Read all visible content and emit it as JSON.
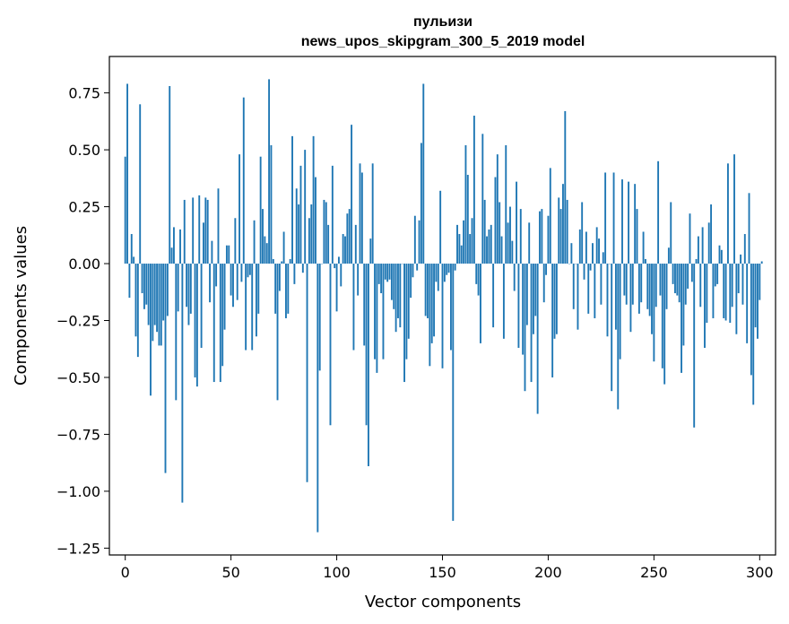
{
  "chart_data": {
    "type": "bar",
    "title_line1": "пульизи",
    "title_line2": "news_upos_skipgram_300_5_2019 model",
    "xlabel": "Vector components",
    "ylabel": "Components values",
    "xlim": [
      -7.5,
      307.5
    ],
    "ylim": [
      -1.28,
      0.91
    ],
    "xticks": [
      0,
      50,
      100,
      150,
      200,
      250,
      300
    ],
    "xtick_labels": [
      "0",
      "50",
      "100",
      "150",
      "200",
      "250",
      "300"
    ],
    "yticks": [
      -1.25,
      -1.0,
      -0.75,
      -0.5,
      -0.25,
      0.0,
      0.25,
      0.5,
      0.75
    ],
    "ytick_labels": [
      "−1.25",
      "−1.00",
      "−0.75",
      "−0.50",
      "−0.25",
      "0.00",
      "0.25",
      "0.50",
      "0.75"
    ],
    "bar_color": "#1f77b4",
    "grid": false,
    "x": "0..299",
    "values": [
      0.47,
      0.79,
      -0.15,
      0.13,
      0.03,
      -0.32,
      -0.41,
      0.7,
      -0.13,
      -0.2,
      -0.18,
      -0.27,
      -0.58,
      -0.34,
      -0.27,
      -0.3,
      -0.36,
      -0.36,
      -0.25,
      -0.92,
      -0.23,
      0.78,
      0.07,
      0.16,
      -0.6,
      -0.21,
      0.15,
      -1.05,
      0.28,
      -0.19,
      -0.27,
      -0.22,
      0.29,
      -0.5,
      -0.54,
      0.3,
      -0.37,
      0.18,
      0.29,
      0.28,
      -0.17,
      0.1,
      -0.52,
      -0.1,
      0.33,
      -0.52,
      -0.45,
      -0.29,
      0.08,
      0.08,
      -0.14,
      -0.19,
      0.2,
      -0.16,
      0.48,
      -0.08,
      0.73,
      -0.38,
      -0.06,
      -0.05,
      -0.38,
      0.19,
      -0.32,
      -0.22,
      0.47,
      0.24,
      0.12,
      0.09,
      0.81,
      0.52,
      0.02,
      -0.22,
      -0.6,
      -0.12,
      0.01,
      0.14,
      -0.24,
      -0.22,
      0.02,
      0.56,
      -0.09,
      0.33,
      0.26,
      0.43,
      -0.04,
      0.5,
      -0.96,
      0.2,
      0.26,
      0.56,
      0.38,
      -1.18,
      -0.47,
      0.0,
      0.28,
      0.27,
      0.17,
      -0.71,
      0.43,
      -0.02,
      -0.21,
      0.03,
      -0.1,
      0.13,
      0.12,
      0.22,
      0.24,
      0.61,
      -0.38,
      0.17,
      -0.14,
      0.44,
      0.4,
      -0.36,
      -0.71,
      -0.89,
      0.11,
      0.44,
      -0.42,
      -0.48,
      -0.09,
      -0.13,
      -0.42,
      -0.07,
      -0.08,
      -0.07,
      -0.16,
      -0.2,
      -0.3,
      -0.24,
      -0.28,
      0.0,
      -0.52,
      -0.42,
      -0.33,
      -0.15,
      -0.06,
      0.21,
      -0.03,
      0.19,
      0.53,
      0.79,
      -0.23,
      -0.24,
      -0.45,
      -0.35,
      -0.32,
      -0.08,
      -0.12,
      0.32,
      -0.46,
      -0.08,
      -0.05,
      -0.04,
      -0.38,
      -1.13,
      -0.03,
      0.17,
      0.13,
      0.08,
      0.19,
      0.52,
      0.39,
      0.13,
      0.2,
      0.65,
      -0.09,
      -0.14,
      -0.35,
      0.57,
      0.28,
      0.12,
      0.15,
      0.17,
      -0.28,
      0.38,
      0.48,
      0.27,
      0.12,
      -0.33,
      0.52,
      0.18,
      0.25,
      0.1,
      -0.12,
      0.36,
      -0.37,
      0.24,
      -0.4,
      -0.56,
      -0.27,
      0.18,
      -0.52,
      -0.31,
      -0.23,
      -0.66,
      0.23,
      0.24,
      -0.17,
      -0.05,
      0.21,
      0.42,
      -0.5,
      -0.33,
      -0.31,
      0.29,
      0.24,
      0.35,
      0.67,
      0.28,
      0.0,
      0.09,
      -0.2,
      0.0,
      -0.29,
      0.15,
      0.27,
      -0.07,
      0.14,
      -0.22,
      -0.03,
      0.09,
      -0.24,
      0.16,
      0.11,
      -0.18,
      0.05,
      0.4,
      -0.32,
      0.0,
      -0.56,
      0.4,
      -0.29,
      -0.64,
      -0.42,
      0.37,
      -0.14,
      -0.18,
      0.36,
      -0.3,
      -0.18,
      0.35,
      0.24,
      -0.22,
      -0.17,
      0.14,
      0.02,
      -0.2,
      -0.23,
      -0.31,
      -0.43,
      -0.19,
      0.45,
      -0.14,
      -0.46,
      -0.53,
      -0.2,
      0.07,
      0.27,
      -0.09,
      -0.13,
      -0.14,
      -0.17,
      -0.48,
      -0.36,
      -0.18,
      -0.11,
      0.22,
      -0.08,
      -0.72,
      0.02,
      0.12,
      -0.19,
      0.16,
      -0.37,
      -0.26,
      0.18,
      0.26,
      -0.24,
      -0.1,
      -0.09,
      0.08,
      0.06,
      -0.24,
      -0.25,
      0.44,
      -0.26,
      -0.19,
      0.48,
      -0.31,
      -0.13,
      0.04,
      -0.18,
      0.13,
      -0.35,
      0.31,
      -0.49,
      -0.62,
      -0.28,
      -0.33,
      -0.16,
      0.01
    ]
  }
}
